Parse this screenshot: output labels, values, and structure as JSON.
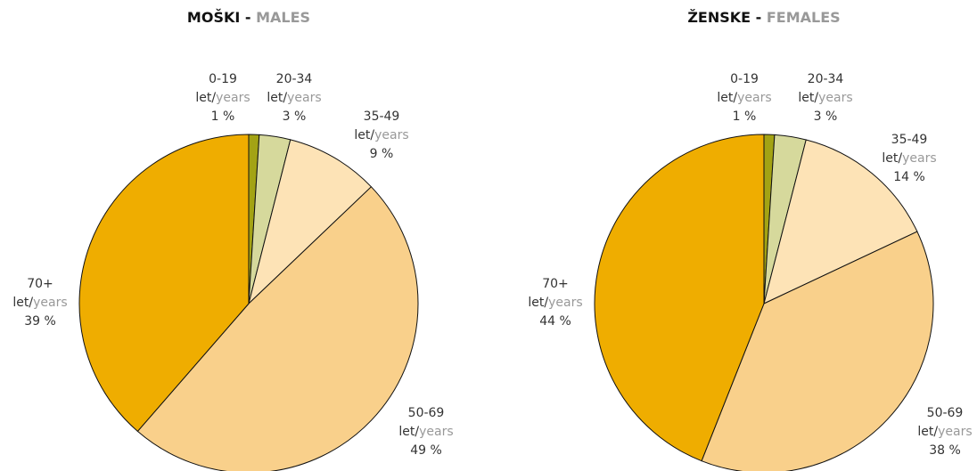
{
  "chart_data": [
    {
      "type": "pie",
      "title": [
        "MOŠKI -",
        "MALES"
      ],
      "categories": [
        "0-19",
        "20-34",
        "35-49",
        "50-69",
        "70+"
      ],
      "label_units": [
        "let/",
        "years"
      ],
      "values": [
        1,
        3,
        9,
        49,
        39
      ],
      "value_labels": [
        "1 %",
        "3 %",
        "9 %",
        "49 %",
        "39 %"
      ],
      "colors": [
        "#a3a314",
        "#d6d99c",
        "#fde3b6",
        "#f9d08b",
        "#efad00"
      ]
    },
    {
      "type": "pie",
      "title": [
        "ŽENSKE -",
        "FEMALES"
      ],
      "categories": [
        "0-19",
        "20-34",
        "35-49",
        "50-69",
        "70+"
      ],
      "label_units": [
        "let/",
        "years"
      ],
      "values": [
        1,
        3,
        14,
        38,
        44
      ],
      "value_labels": [
        "1 %",
        "3 %",
        "14 %",
        "38 %",
        "44 %"
      ],
      "colors": [
        "#a3a314",
        "#d6d99c",
        "#fde3b6",
        "#f9d08b",
        "#efad00"
      ]
    }
  ]
}
